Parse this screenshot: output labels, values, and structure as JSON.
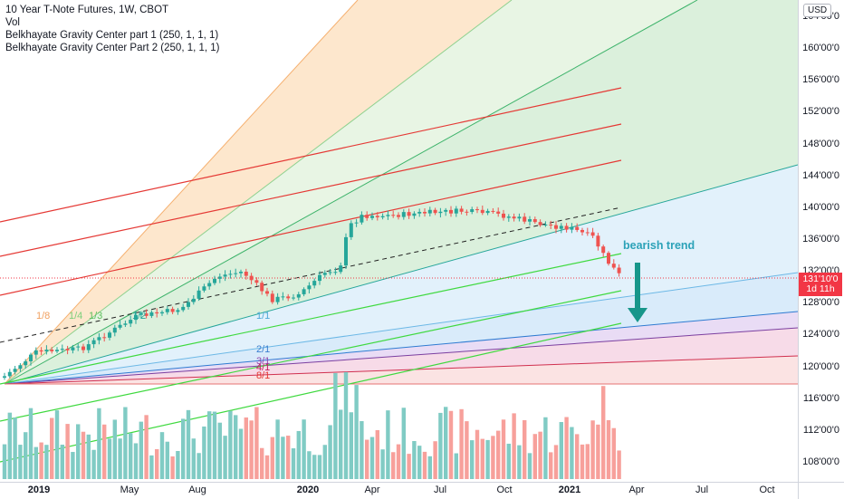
{
  "legend": {
    "title": "10 Year T-Note Futures, 1W, CBOT",
    "vol": "Vol",
    "indicator1": "Belkhayate Gravity Center part 1 (250, 1, 1, 1)",
    "indicator2": "Belkhayate Gravity Center Part 2 (250, 1, 1, 1)"
  },
  "currency": "USD",
  "price_label": {
    "price": "131'10'0",
    "countdown": "1d 11h"
  },
  "price_ticks": [
    "164'00'0",
    "160'00'0",
    "156'00'0",
    "152'00'0",
    "148'00'0",
    "144'00'0",
    "140'00'0",
    "136'00'0",
    "132'00'0",
    "128'00'0",
    "124'00'0",
    "120'00'0",
    "116'00'0",
    "112'00'0",
    "108'00'0"
  ],
  "time_ticks": [
    {
      "label": "2019",
      "bold": true
    },
    {
      "label": "May",
      "bold": false
    },
    {
      "label": "Aug",
      "bold": false
    },
    {
      "label": "2020",
      "bold": true
    },
    {
      "label": "Apr",
      "bold": false
    },
    {
      "label": "Jul",
      "bold": false
    },
    {
      "label": "Oct",
      "bold": false
    },
    {
      "label": "2021",
      "bold": true
    },
    {
      "label": "Apr",
      "bold": false
    },
    {
      "label": "Jul",
      "bold": false
    },
    {
      "label": "Oct",
      "bold": false
    }
  ],
  "gann_labels": {
    "g18": "1/8",
    "g14": "1/4",
    "g13": "1/3",
    "g12": "1/2",
    "g11": "1/1",
    "g21": "2/1",
    "g31": "3/1",
    "g41": "4/1",
    "g81": "8/1"
  },
  "annotation": {
    "trend": "bearish trend"
  },
  "colors": {
    "bull": "#26a69a",
    "bear": "#ef5350",
    "vol_bull": "#80cbc4",
    "vol_bear": "#f7a09b",
    "red_line": "#e53935",
    "green_line": "#4caf50"
  },
  "chart_data": {
    "type": "candlestick",
    "y_range": [
      106,
      166
    ],
    "weekly_close_path": [
      {
        "date": "2018-12-24",
        "close": 118.5
      },
      {
        "date": "2019-03-01",
        "close": 123.5
      },
      {
        "date": "2019-06-01",
        "close": 127.5
      },
      {
        "date": "2019-08-20",
        "close": 131.5
      },
      {
        "date": "2019-10-15",
        "close": 129
      },
      {
        "date": "2020-01-15",
        "close": 131
      },
      {
        "date": "2020-03-09",
        "close": 139
      },
      {
        "date": "2020-06-01",
        "close": 139
      },
      {
        "date": "2020-10-01",
        "close": 139
      },
      {
        "date": "2021-01-01",
        "close": 137
      },
      {
        "date": "2021-03-12",
        "close": 131.3
      }
    ],
    "last_close": "131'10'0"
  }
}
